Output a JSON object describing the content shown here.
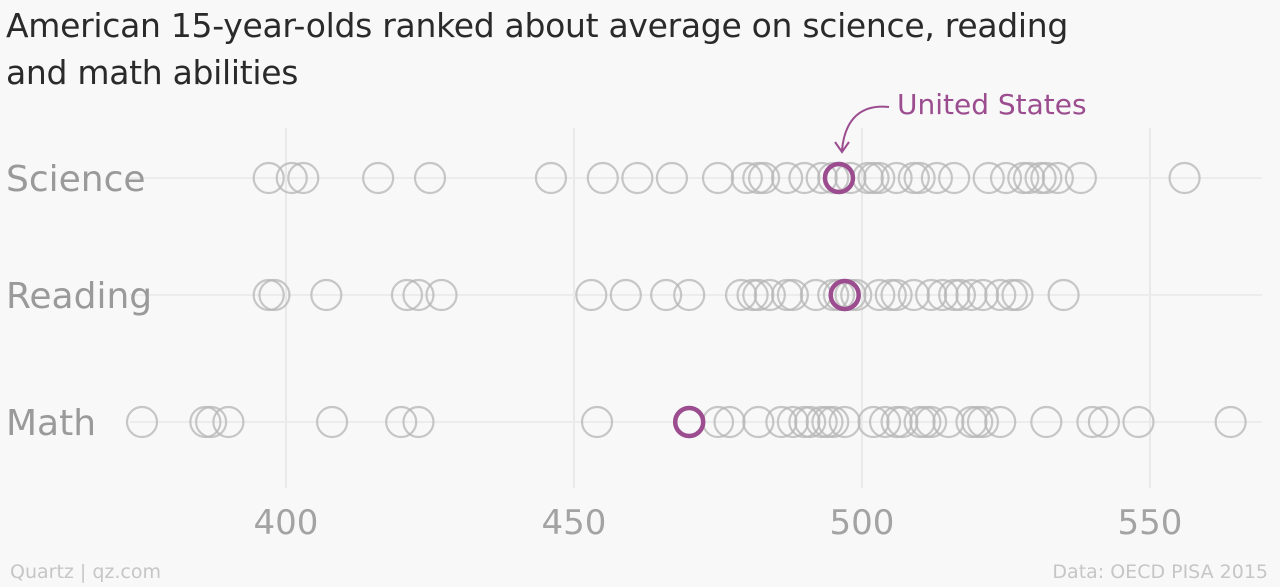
{
  "chart_data": {
    "type": "scatter",
    "title": "American 15-year-olds ranked about average on science, reading and math abilities",
    "categories": [
      "Science",
      "Reading",
      "Math"
    ],
    "xlim": [
      352,
      570
    ],
    "xticks": [
      400,
      450,
      500,
      550
    ],
    "grid": true,
    "highlight": {
      "name": "United States",
      "color": "#9b4d8f",
      "values": {
        "Science": 496,
        "Reading": 497,
        "Math": 470
      }
    },
    "series": [
      {
        "name": "Science",
        "values": [
          397,
          401,
          403,
          416,
          425,
          446,
          455,
          461,
          467,
          475,
          480,
          482,
          483,
          487,
          490,
          493,
          495,
          496,
          498,
          501,
          502,
          503,
          506,
          509,
          510,
          513,
          516,
          522,
          525,
          528,
          529,
          531,
          532,
          534,
          538,
          556
        ]
      },
      {
        "name": "Reading",
        "values": [
          397,
          398,
          407,
          421,
          423,
          427,
          453,
          459,
          466,
          470,
          479,
          481,
          482,
          484,
          487,
          488,
          492,
          495,
          496,
          497,
          498,
          499,
          503,
          505,
          506,
          509,
          512,
          514,
          516,
          517,
          519,
          521,
          524,
          526,
          527,
          535
        ]
      },
      {
        "name": "Math",
        "values": [
          375,
          386,
          387,
          390,
          408,
          420,
          423,
          454,
          470,
          475,
          477,
          482,
          486,
          488,
          490,
          491,
          493,
          494,
          495,
          497,
          502,
          504,
          506,
          507,
          510,
          511,
          512,
          515,
          519,
          520,
          521,
          524,
          532,
          540,
          542,
          548,
          564
        ]
      }
    ]
  },
  "annotation": {
    "label": "United States"
  },
  "footer": {
    "credit": "Quartz | qz.com",
    "source": "Data: OECD PISA 2015"
  }
}
